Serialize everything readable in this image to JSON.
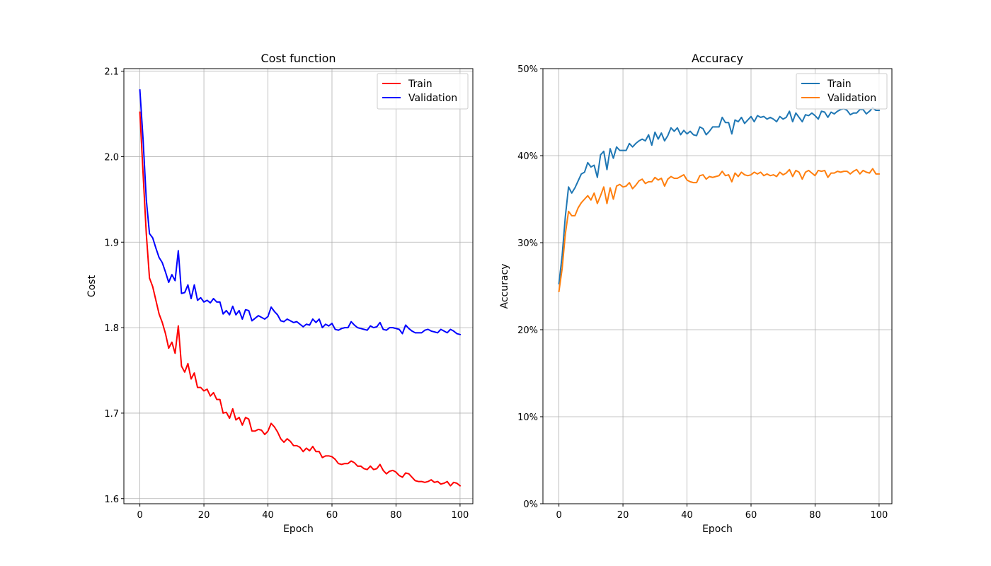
{
  "chart_data": [
    {
      "type": "line",
      "title": "Cost function",
      "xlabel": "Epoch",
      "ylabel": "Cost",
      "xlim": [
        -5,
        104
      ],
      "ylim": [
        1.594,
        2.103
      ],
      "xticks": [
        0,
        20,
        40,
        60,
        80,
        100
      ],
      "yticks": [
        1.6,
        1.7,
        1.8,
        1.9,
        2.0,
        2.1
      ],
      "ytick_labels": [
        "1.6",
        "1.7",
        "1.8",
        "1.9",
        "2.0",
        "2.1"
      ],
      "grid": true,
      "legend_position": "top-right",
      "x_start": 0,
      "series": [
        {
          "name": "Train",
          "color": "#ff0000",
          "values": [
            2.052,
            1.98,
            1.91,
            1.858,
            1.848,
            1.832,
            1.816,
            1.806,
            1.793,
            1.776,
            1.783,
            1.77,
            1.802,
            1.755,
            1.748,
            1.758,
            1.74,
            1.747,
            1.73,
            1.73,
            1.726,
            1.728,
            1.72,
            1.724,
            1.716,
            1.716,
            1.7,
            1.701,
            1.694,
            1.705,
            1.692,
            1.695,
            1.686,
            1.695,
            1.693,
            1.679,
            1.679,
            1.681,
            1.68,
            1.675,
            1.679,
            1.688,
            1.684,
            1.678,
            1.67,
            1.666,
            1.67,
            1.667,
            1.662,
            1.662,
            1.66,
            1.655,
            1.659,
            1.656,
            1.661,
            1.655,
            1.655,
            1.648,
            1.65,
            1.65,
            1.649,
            1.646,
            1.641,
            1.64,
            1.641,
            1.641,
            1.644,
            1.642,
            1.638,
            1.638,
            1.635,
            1.634,
            1.638,
            1.634,
            1.635,
            1.64,
            1.633,
            1.629,
            1.632,
            1.633,
            1.631,
            1.627,
            1.625,
            1.63,
            1.629,
            1.625,
            1.621,
            1.62,
            1.62,
            1.619,
            1.62,
            1.622,
            1.619,
            1.62,
            1.617,
            1.618,
            1.62,
            1.615,
            1.619,
            1.618,
            1.615
          ]
        },
        {
          "name": "Validation",
          "color": "#0000ff",
          "values": [
            2.078,
            2.02,
            1.95,
            1.91,
            1.905,
            1.893,
            1.882,
            1.876,
            1.865,
            1.853,
            1.862,
            1.855,
            1.89,
            1.84,
            1.841,
            1.85,
            1.834,
            1.85,
            1.832,
            1.835,
            1.83,
            1.832,
            1.829,
            1.834,
            1.83,
            1.83,
            1.816,
            1.82,
            1.815,
            1.825,
            1.815,
            1.82,
            1.81,
            1.821,
            1.82,
            1.808,
            1.811,
            1.814,
            1.812,
            1.81,
            1.813,
            1.824,
            1.819,
            1.815,
            1.808,
            1.807,
            1.81,
            1.808,
            1.806,
            1.807,
            1.804,
            1.801,
            1.804,
            1.803,
            1.81,
            1.806,
            1.81,
            1.8,
            1.804,
            1.802,
            1.805,
            1.798,
            1.797,
            1.799,
            1.8,
            1.8,
            1.807,
            1.803,
            1.8,
            1.799,
            1.798,
            1.797,
            1.802,
            1.8,
            1.801,
            1.806,
            1.798,
            1.797,
            1.8,
            1.8,
            1.799,
            1.798,
            1.793,
            1.803,
            1.799,
            1.796,
            1.794,
            1.794,
            1.794,
            1.797,
            1.798,
            1.796,
            1.795,
            1.794,
            1.798,
            1.796,
            1.794,
            1.798,
            1.796,
            1.793,
            1.792
          ]
        }
      ]
    },
    {
      "type": "line",
      "title": "Accuracy",
      "xlabel": "Epoch",
      "ylabel": "Accuracy",
      "xlim": [
        -5,
        104
      ],
      "ylim": [
        0,
        50
      ],
      "xticks": [
        0,
        20,
        40,
        60,
        80,
        100
      ],
      "yticks": [
        0,
        10,
        20,
        30,
        40,
        50
      ],
      "ytick_labels": [
        "0%",
        "10%",
        "20%",
        "30%",
        "40%",
        "50%"
      ],
      "grid": true,
      "legend_position": "top-right",
      "x_start": 0,
      "series": [
        {
          "name": "Train",
          "color": "#1f77b4",
          "values": [
            25.3,
            28.5,
            33.0,
            36.4,
            35.7,
            36.3,
            37.1,
            37.9,
            38.1,
            39.2,
            38.7,
            38.9,
            37.5,
            40.1,
            40.5,
            38.4,
            40.8,
            39.7,
            41.0,
            40.6,
            40.6,
            40.6,
            41.4,
            41.0,
            41.4,
            41.7,
            41.9,
            41.7,
            42.4,
            41.2,
            42.7,
            41.9,
            42.6,
            41.7,
            42.3,
            43.2,
            42.8,
            43.2,
            42.4,
            42.9,
            42.5,
            42.8,
            42.4,
            42.3,
            43.3,
            43.1,
            42.4,
            42.8,
            43.3,
            43.3,
            43.3,
            44.4,
            43.8,
            43.8,
            42.5,
            44.1,
            43.9,
            44.4,
            43.7,
            44.1,
            44.5,
            43.9,
            44.6,
            44.4,
            44.5,
            44.2,
            44.4,
            44.2,
            43.9,
            44.5,
            44.2,
            44.4,
            45.1,
            43.9,
            44.9,
            44.4,
            43.9,
            44.7,
            44.6,
            44.9,
            44.6,
            44.2,
            45.1,
            45.0,
            44.4,
            45.0,
            44.8,
            45.1,
            45.3,
            45.4,
            45.2,
            44.7,
            44.9,
            44.9,
            45.3,
            45.3,
            44.8,
            45.1,
            45.5,
            45.2,
            45.2
          ]
        },
        {
          "name": "Validation",
          "color": "#ff7f0e",
          "values": [
            24.4,
            27.0,
            31.0,
            33.6,
            33.1,
            33.1,
            34.0,
            34.6,
            35.0,
            35.4,
            34.9,
            35.7,
            34.5,
            35.4,
            36.4,
            34.5,
            36.3,
            35.0,
            36.5,
            36.7,
            36.4,
            36.5,
            36.9,
            36.2,
            36.6,
            37.1,
            37.3,
            36.8,
            37.0,
            37.0,
            37.5,
            37.2,
            37.4,
            36.5,
            37.3,
            37.6,
            37.4,
            37.4,
            37.6,
            37.8,
            37.2,
            37.0,
            36.9,
            36.9,
            37.7,
            37.8,
            37.3,
            37.6,
            37.5,
            37.6,
            37.7,
            38.2,
            37.7,
            37.8,
            37.0,
            38.0,
            37.6,
            38.1,
            37.8,
            37.7,
            37.8,
            38.1,
            37.9,
            38.1,
            37.7,
            37.9,
            37.7,
            37.8,
            37.6,
            38.1,
            37.8,
            38.0,
            38.4,
            37.6,
            38.3,
            38.1,
            37.3,
            38.1,
            38.3,
            38.0,
            37.7,
            38.3,
            38.2,
            38.3,
            37.5,
            38.0,
            38.0,
            38.2,
            38.1,
            38.2,
            38.2,
            37.9,
            38.2,
            38.4,
            37.9,
            38.3,
            38.1,
            38.0,
            38.5,
            37.9,
            37.9
          ]
        }
      ]
    }
  ]
}
